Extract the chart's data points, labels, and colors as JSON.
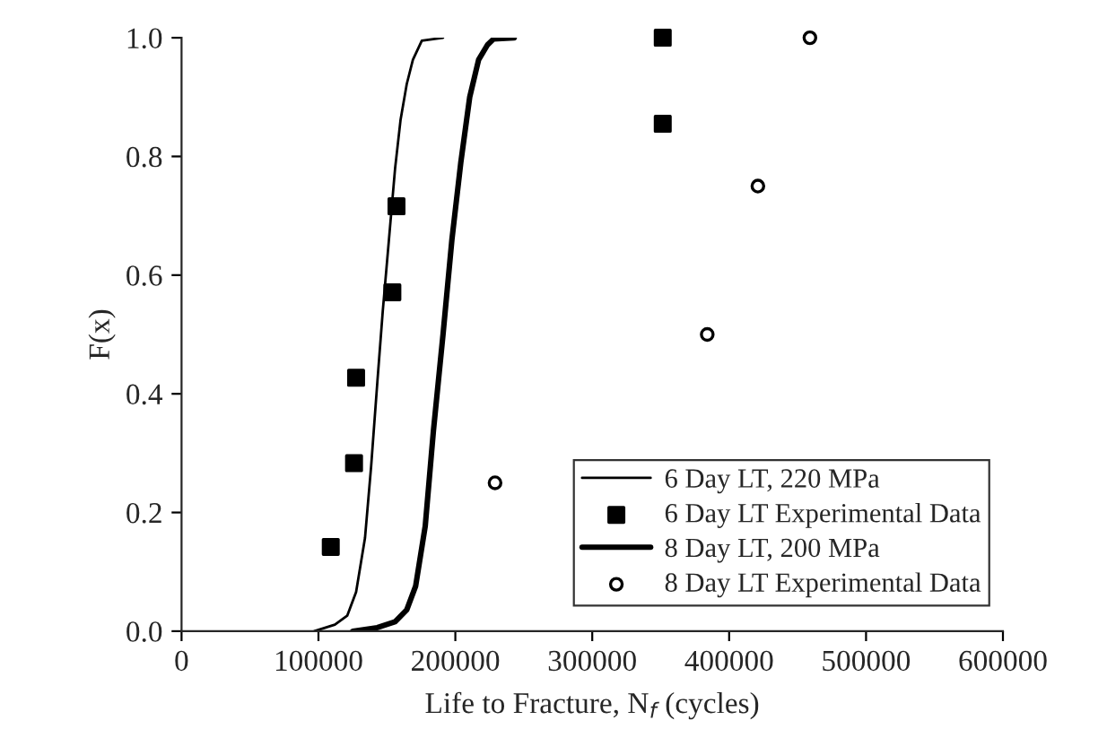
{
  "chart_data": {
    "type": "line",
    "xlabel": "Life to Fracture, N$_{f}$ (cycles)",
    "ylabel": "F(x)",
    "xlim": [
      0,
      600000
    ],
    "xticks": [
      0,
      100000,
      200000,
      300000,
      400000,
      500000,
      600000
    ],
    "ylim": [
      0,
      1
    ],
    "yticks": [
      {
        "value": 0,
        "label": "0.0"
      },
      {
        "value": 0.2,
        "label": "0.2"
      },
      {
        "value": 0.4,
        "label": "0.4"
      },
      {
        "value": 0.6,
        "label": "0.6"
      },
      {
        "value": 0.8,
        "label": "0.8"
      },
      {
        "value": 1,
        "label": "1.0"
      }
    ],
    "grid": false,
    "legend": "bottom right",
    "series": [
      {
        "name": "6 Day LT, 220 MPa",
        "color": "#000000",
        "line_style": "solid",
        "marker": "none",
        "x": [
          97000,
          112000,
          121000,
          127500,
          134000,
          138500,
          143000,
          147000,
          151500,
          156000,
          160000,
          164500,
          169000,
          175500,
          191000
        ],
        "values": [
          0,
          0.011,
          0.026,
          0.066,
          0.157,
          0.278,
          0.419,
          0.54,
          0.66,
          0.78,
          0.862,
          0.922,
          0.963,
          0.995,
          1.0
        ]
      },
      {
        "name": "6 Day LT Experimental Data",
        "type": "scatter",
        "color": "#000000",
        "marker": "square",
        "x": [
          109000,
          126000,
          127500,
          154000,
          157000,
          351500,
          351500
        ],
        "values": [
          0.142,
          0.283,
          0.427,
          0.571,
          0.716,
          0.855,
          1.0
        ]
      },
      {
        "name": "8 Day LT, 200 MPa",
        "color": "#000000",
        "line_style": "solid",
        "marker": "none",
        "x": [
          125000,
          143000,
          156000,
          164500,
          171000,
          178000,
          184000,
          191000,
          197500,
          204000,
          210500,
          217000,
          223500,
          228000,
          243000
        ],
        "values": [
          0,
          0.006,
          0.016,
          0.036,
          0.076,
          0.177,
          0.338,
          0.5,
          0.66,
          0.79,
          0.9,
          0.963,
          0.988,
          0.998,
          1.0
        ]
      },
      {
        "name": "8 Day LT Experimental Data",
        "type": "scatter",
        "color": "#000000",
        "marker": "circle",
        "x": [
          229000,
          384000,
          421000,
          459000
        ],
        "values": [
          0.25,
          0.5,
          0.75,
          1.0
        ]
      }
    ]
  }
}
